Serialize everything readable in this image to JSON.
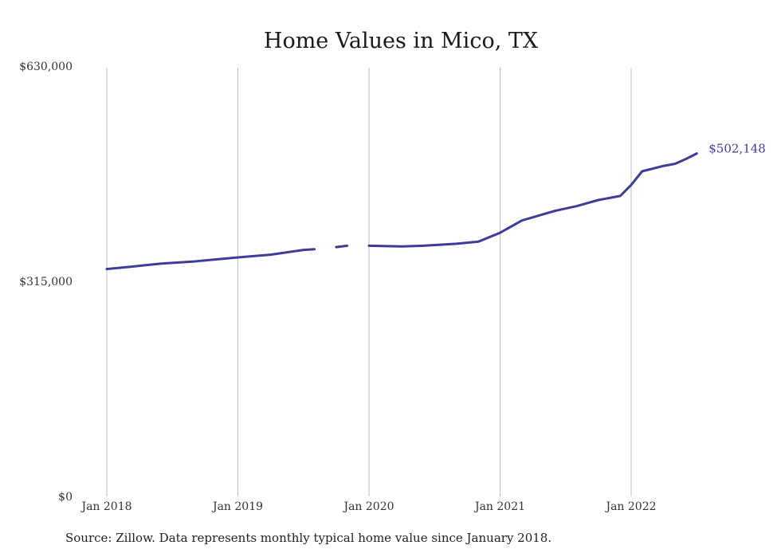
{
  "chart_data": {
    "type": "line",
    "title": "Home Values in Mico, TX",
    "xlabel": "",
    "ylabel": "",
    "ylim": [
      0,
      630000
    ],
    "yticks": [
      {
        "value": 0,
        "label": "$0"
      },
      {
        "value": 315000,
        "label": "$315,000"
      },
      {
        "value": 630000,
        "label": "$630,000"
      }
    ],
    "xticks": [
      {
        "value": "2018-01",
        "label": "Jan 2018"
      },
      {
        "value": "2019-01",
        "label": "Jan 2019"
      },
      {
        "value": "2020-01",
        "label": "Jan 2020"
      },
      {
        "value": "2021-01",
        "label": "Jan 2021"
      },
      {
        "value": "2022-01",
        "label": "Jan 2022"
      }
    ],
    "grid": "vertical",
    "legend": "none",
    "end_label": "$502,148",
    "series": [
      {
        "segments": [
          [
            {
              "x": "2018-01",
              "y": 333000
            },
            {
              "x": "2018-03",
              "y": 336000
            },
            {
              "x": "2018-06",
              "y": 341000
            },
            {
              "x": "2018-09",
              "y": 344000
            },
            {
              "x": "2019-01",
              "y": 350000
            },
            {
              "x": "2019-04",
              "y": 354000
            },
            {
              "x": "2019-07",
              "y": 361000
            },
            {
              "x": "2019-08",
              "y": 362000
            }
          ],
          [
            {
              "x": "2019-10",
              "y": 365000
            },
            {
              "x": "2019-11",
              "y": 367000
            }
          ],
          [
            {
              "x": "2020-01",
              "y": 367000
            },
            {
              "x": "2020-04",
              "y": 366000
            },
            {
              "x": "2020-06",
              "y": 367000
            },
            {
              "x": "2020-09",
              "y": 370000
            },
            {
              "x": "2020-11",
              "y": 373000
            },
            {
              "x": "2021-01",
              "y": 386000
            },
            {
              "x": "2021-03",
              "y": 404000
            },
            {
              "x": "2021-06",
              "y": 418000
            },
            {
              "x": "2021-08",
              "y": 425000
            },
            {
              "x": "2021-10",
              "y": 434000
            },
            {
              "x": "2021-12",
              "y": 440000
            },
            {
              "x": "2022-01",
              "y": 456000
            },
            {
              "x": "2022-02",
              "y": 476000
            },
            {
              "x": "2022-04",
              "y": 484000
            },
            {
              "x": "2022-05",
              "y": 487000
            },
            {
              "x": "2022-06",
              "y": 494000
            },
            {
              "x": "2022-07",
              "y": 502148
            }
          ]
        ]
      }
    ]
  },
  "footnote": "Source: Zillow. Data represents monthly typical home value since January 2018."
}
